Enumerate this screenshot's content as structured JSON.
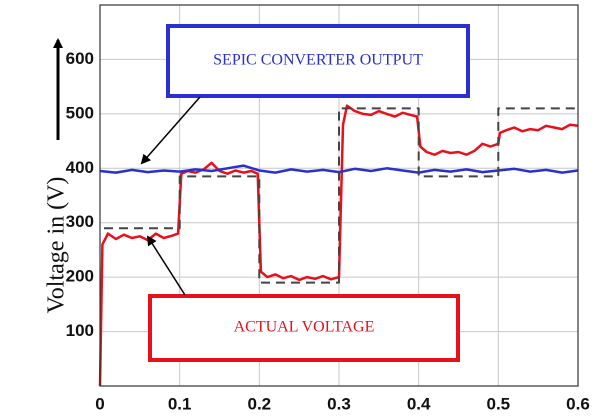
{
  "chart_data": {
    "type": "line",
    "y_label": "Voltage in (V)",
    "annotations": [
      "SEPIC CONVERTER OUTPUT",
      "ACTUAL VOLTAGE"
    ],
    "xlim": [
      0,
      0.6
    ],
    "xticks": [
      0,
      0.1,
      0.2,
      0.3,
      0.4,
      0.5,
      0.6
    ],
    "ylim": [
      0,
      700
    ],
    "yticks": [
      100,
      200,
      300,
      400,
      500,
      600
    ],
    "grid": true,
    "series": [
      {
        "color": "#e8101a",
        "dash": false,
        "x": [
          0,
          0.003,
          0.01,
          0.02,
          0.03,
          0.04,
          0.05,
          0.06,
          0.07,
          0.08,
          0.09,
          0.098,
          0.102,
          0.11,
          0.12,
          0.13,
          0.14,
          0.15,
          0.16,
          0.17,
          0.18,
          0.19,
          0.198,
          0.202,
          0.21,
          0.22,
          0.23,
          0.24,
          0.25,
          0.26,
          0.27,
          0.28,
          0.29,
          0.3,
          0.305,
          0.31,
          0.32,
          0.33,
          0.34,
          0.35,
          0.36,
          0.37,
          0.38,
          0.39,
          0.398,
          0.402,
          0.41,
          0.42,
          0.43,
          0.44,
          0.45,
          0.46,
          0.47,
          0.48,
          0.49,
          0.5,
          0.502,
          0.51,
          0.52,
          0.53,
          0.54,
          0.55,
          0.56,
          0.57,
          0.58,
          0.59,
          0.6
        ],
        "values": [
          0,
          260,
          280,
          270,
          278,
          272,
          275,
          268,
          280,
          272,
          276,
          280,
          390,
          395,
          392,
          398,
          410,
          395,
          390,
          396,
          392,
          395,
          390,
          210,
          200,
          205,
          198,
          202,
          195,
          200,
          197,
          202,
          196,
          200,
          480,
          515,
          505,
          500,
          498,
          505,
          500,
          495,
          502,
          498,
          495,
          440,
          430,
          425,
          432,
          428,
          430,
          425,
          432,
          445,
          440,
          445,
          465,
          470,
          475,
          468,
          472,
          470,
          478,
          475,
          472,
          480,
          478
        ]
      },
      {
        "color": "#2a2fd0",
        "dash": false,
        "x": [
          0,
          0.02,
          0.04,
          0.06,
          0.08,
          0.1,
          0.12,
          0.14,
          0.16,
          0.18,
          0.2,
          0.22,
          0.24,
          0.26,
          0.28,
          0.3,
          0.32,
          0.34,
          0.36,
          0.38,
          0.4,
          0.42,
          0.44,
          0.46,
          0.48,
          0.5,
          0.52,
          0.54,
          0.56,
          0.58,
          0.6
        ],
        "values": [
          395,
          392,
          397,
          393,
          396,
          394,
          398,
          395,
          400,
          405,
          396,
          392,
          398,
          394,
          397,
          393,
          399,
          395,
          400,
          396,
          392,
          397,
          394,
          398,
          393,
          396,
          399,
          394,
          397,
          392,
          396
        ]
      },
      {
        "color": "#444444",
        "dash": true,
        "x": [
          0.005,
          0.1,
          0.1,
          0.2,
          0.2,
          0.3,
          0.3,
          0.4,
          0.4,
          0.5,
          0.5,
          0.6
        ],
        "values": [
          290,
          290,
          385,
          385,
          190,
          190,
          510,
          510,
          385,
          385,
          510,
          510
        ]
      }
    ]
  }
}
